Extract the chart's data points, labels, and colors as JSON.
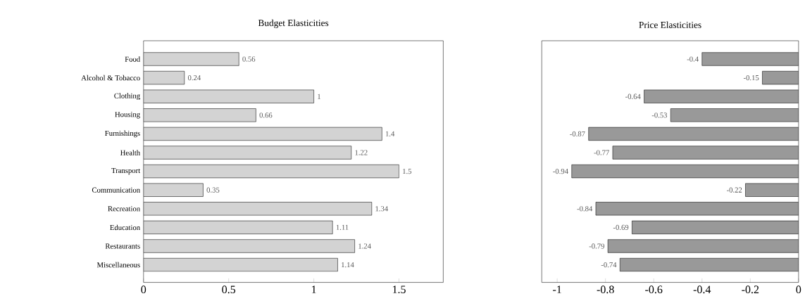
{
  "chart_data": [
    {
      "type": "bar",
      "orientation": "horizontal",
      "title": "Budget Elasticities",
      "categories": [
        "Food",
        "Alcohol & Tobacco",
        "Clothing",
        "Housing",
        "Furnishings",
        "Health",
        "Transport",
        "Communication",
        "Recreation",
        "Education",
        "Restaurants",
        "Miscellaneous"
      ],
      "values": [
        0.56,
        0.24,
        1,
        0.66,
        1.4,
        1.22,
        1.5,
        0.35,
        1.34,
        1.11,
        1.24,
        1.14
      ],
      "color": "#d3d3d3",
      "xlim": [
        0,
        1.76
      ],
      "xticks": [
        0,
        0.5,
        1,
        1.5
      ],
      "data_labels": true
    },
    {
      "type": "bar",
      "orientation": "horizontal",
      "title": "Price Elasticities",
      "categories": [
        null,
        null,
        null,
        null,
        null,
        null,
        null,
        null,
        null,
        null,
        null,
        null
      ],
      "values": [
        -0.4,
        -0.15,
        -0.64,
        -0.53,
        -0.87,
        -0.77,
        -0.94,
        -0.22,
        -0.84,
        -0.69,
        -0.79,
        -0.74
      ],
      "color": "#999999",
      "xlim": [
        -1.064,
        0
      ],
      "xticks": [
        -1,
        -0.8,
        -0.6,
        -0.4,
        -0.2,
        0
      ],
      "data_labels": true
    }
  ]
}
